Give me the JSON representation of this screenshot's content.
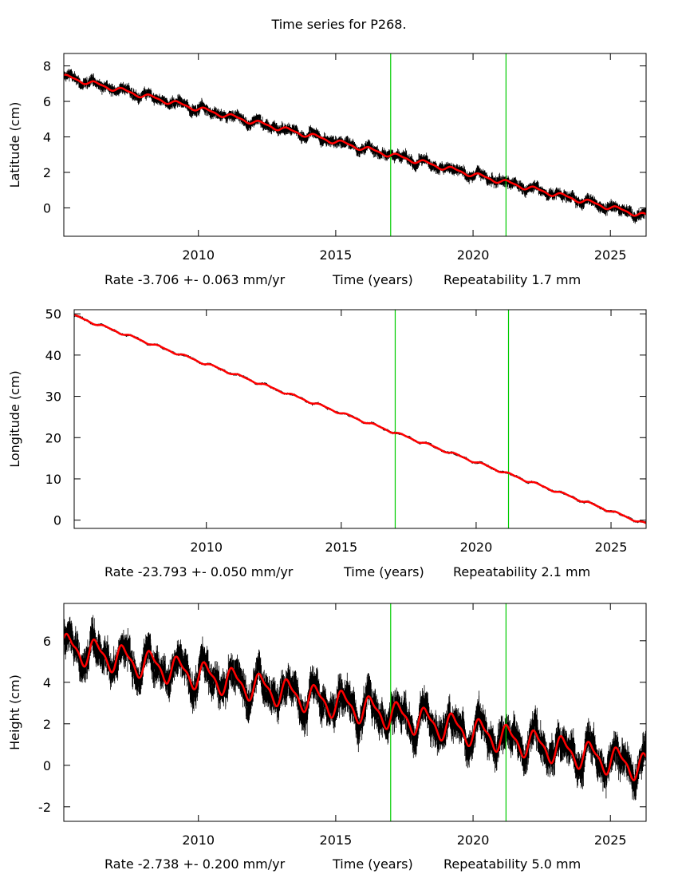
{
  "title": "Time series for P268.",
  "colors": {
    "data": "#000000",
    "model": "#ff0000",
    "breaks": "#00cc00",
    "frame": "#000000"
  },
  "chart_data": [
    {
      "type": "line",
      "name": "latitude",
      "ylabel": "Latitude (cm)",
      "xlim": [
        2005.1,
        2026.3
      ],
      "ylim": [
        -1.6,
        8.7
      ],
      "yticks": [
        0,
        2,
        4,
        6,
        8
      ],
      "xticks": [
        2010,
        2015,
        2020,
        2025
      ],
      "break_lines_x": [
        2017.0,
        2021.2
      ],
      "rate": -0.3706,
      "start": 7.4,
      "seasonal_amp": 0.12,
      "scatter": 0.28,
      "footer": {
        "rate": "Rate -3.706 +- 0.063 mm/yr",
        "xlabel": "Time (years)",
        "repeat": "Repeatability 1.7 mm"
      }
    },
    {
      "type": "line",
      "name": "longitude",
      "ylabel": "Longitude (cm)",
      "xlim": [
        2005.1,
        2026.3
      ],
      "ylim": [
        -2,
        51
      ],
      "yticks": [
        0,
        10,
        20,
        30,
        40,
        50
      ],
      "xticks": [
        2010,
        2015,
        2020,
        2025
      ],
      "break_lines_x": [
        2017.0,
        2021.2
      ],
      "rate": -2.3793,
      "start": 49.5,
      "seasonal_amp": 0.25,
      "scatter": 0.25,
      "footer": {
        "rate": "Rate -23.793 +- 0.050 mm/yr",
        "xlabel": "Time (years)",
        "repeat": "Repeatability 2.1 mm"
      }
    },
    {
      "type": "line",
      "name": "height",
      "ylabel": "Height (cm)",
      "xlim": [
        2005.1,
        2026.3
      ],
      "ylim": [
        -2.7,
        7.8
      ],
      "yticks": [
        -2,
        0,
        2,
        4,
        6
      ],
      "xticks": [
        2010,
        2015,
        2020,
        2025
      ],
      "break_lines_x": [
        2017.0,
        2021.2
      ],
      "rate": -0.2738,
      "start": 5.7,
      "seasonal_amp": 0.6,
      "scatter": 0.75,
      "footer": {
        "rate": "Rate -2.738 +- 0.200 mm/yr",
        "xlabel": "Time (years)",
        "repeat": "Repeatability 5.0 mm"
      }
    }
  ]
}
